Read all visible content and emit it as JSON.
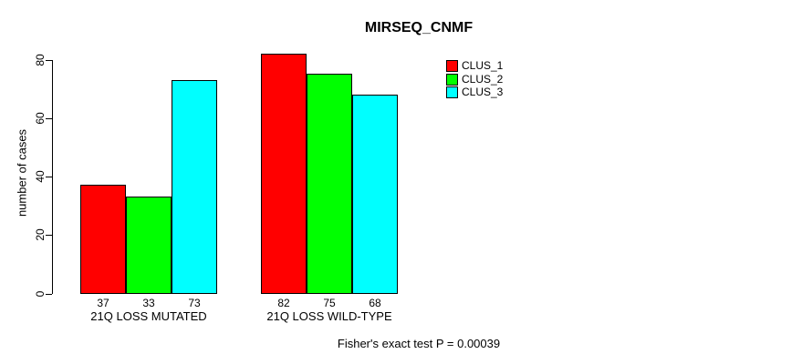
{
  "chart_data": {
    "type": "bar",
    "title": "MIRSEQ_CNMF",
    "ylabel": "number of cases",
    "xlabel": "",
    "ylim": [
      0,
      80
    ],
    "yticks": [
      0,
      20,
      40,
      60,
      80
    ],
    "grid": false,
    "legend_position": "top-right",
    "bar_value_labels": true,
    "categories": [
      "21Q LOSS MUTATED",
      "21Q LOSS WILD-TYPE"
    ],
    "series": [
      {
        "name": "CLUS_1",
        "color": "#ff0000",
        "values": [
          37,
          82
        ]
      },
      {
        "name": "CLUS_2",
        "color": "#00ff00",
        "values": [
          33,
          75
        ]
      },
      {
        "name": "CLUS_3",
        "color": "#00ffff",
        "values": [
          73,
          68
        ]
      }
    ],
    "annotation": "Fisher's exact test P = 0.00039"
  }
}
